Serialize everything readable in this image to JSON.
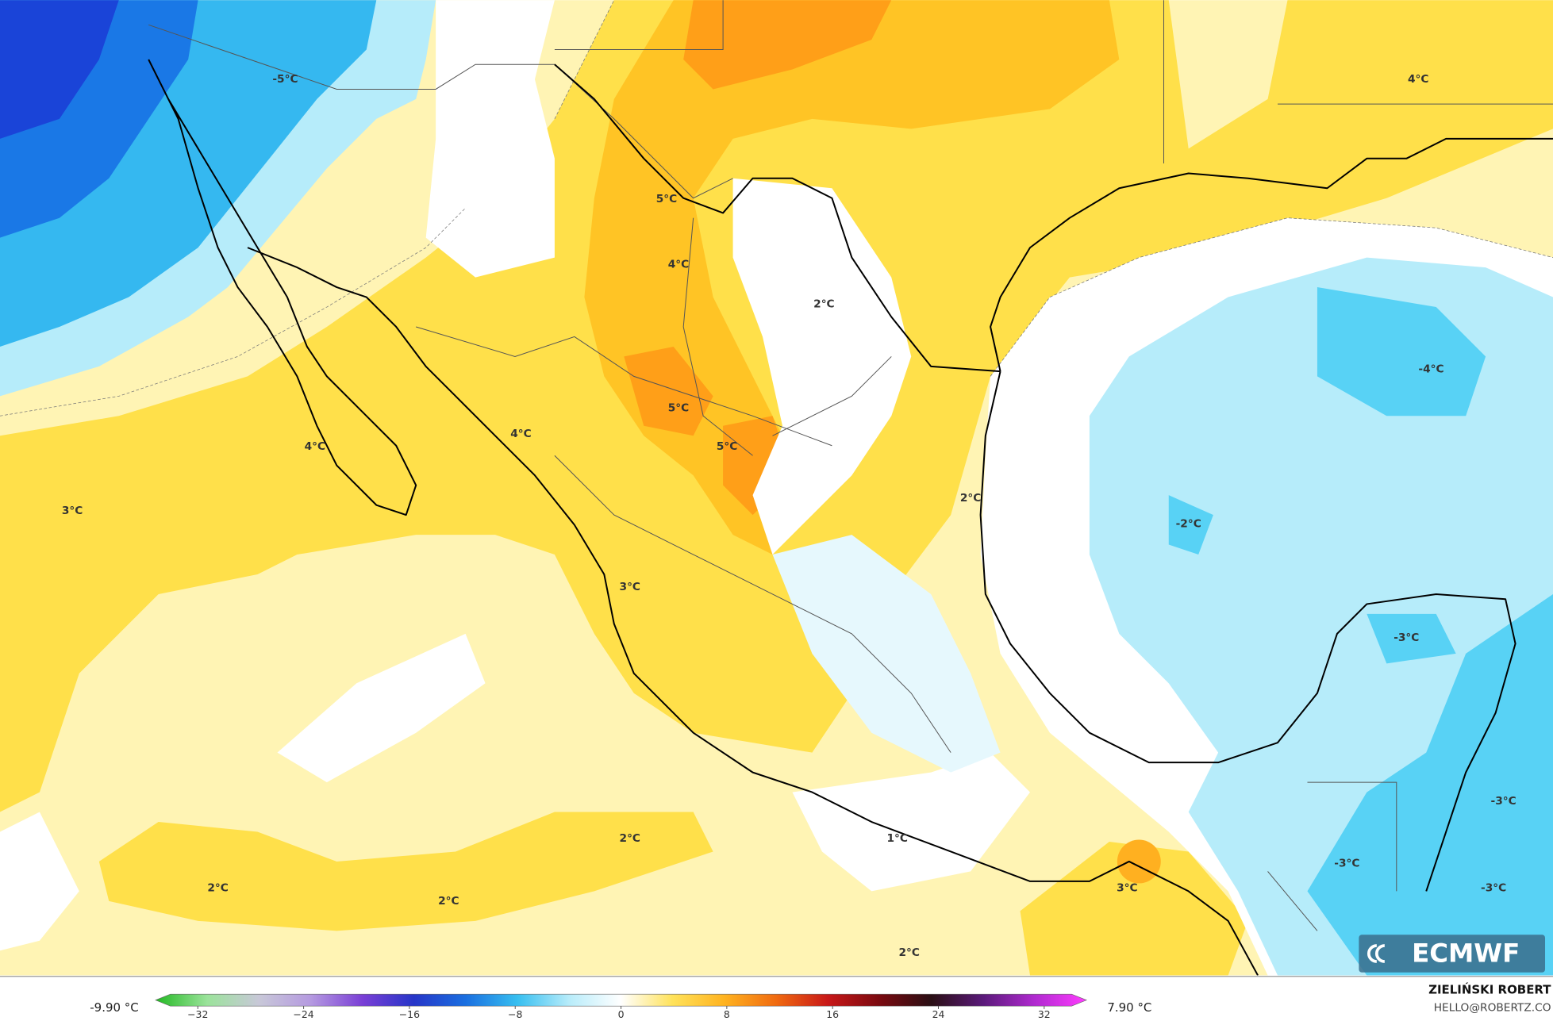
{
  "map_labels": [
    "-5°C",
    "4°C",
    "5°C",
    "4°C",
    "2°C",
    "-4°C",
    "5°C",
    "4°C",
    "5°C",
    "4°C",
    "3°C",
    "2°C",
    "-2°C",
    "3°C",
    "-3°C",
    "-3°C",
    "2°C",
    "1°C",
    "-3°C",
    "2°C",
    "3°C",
    "-3°C",
    "2°C",
    "2°C"
  ],
  "legend": {
    "min_label": "-9.90 °C",
    "max_label": "7.90 °C",
    "lim": [
      -35.2,
      35.2
    ],
    "ticks": [
      {
        "value": -32,
        "label": "−32"
      },
      {
        "value": -24,
        "label": "−24"
      },
      {
        "value": -16,
        "label": "−16"
      },
      {
        "value": -8,
        "label": "−8"
      },
      0,
      8,
      16,
      24,
      32
    ],
    "colors": [
      "#22b922",
      "#9be39b",
      "#c8c8d8",
      "#b59ae0",
      "#7a3fd6",
      "#2636c8",
      "#1a6fe0",
      "#37bff0",
      "#b8ecfa",
      "#ffffff",
      "#ffe25a",
      "#ffb320",
      "#f06a10",
      "#c81818",
      "#7a0a10",
      "#2a0f14",
      "#5a1a7a",
      "#b02ad0",
      "#ff3cff"
    ]
  },
  "credit": {
    "name": "ZIELIŃSKI ROBERT",
    "contact": "HELLO@ROBERTZ.CO"
  },
  "logo": "ECMWF"
}
